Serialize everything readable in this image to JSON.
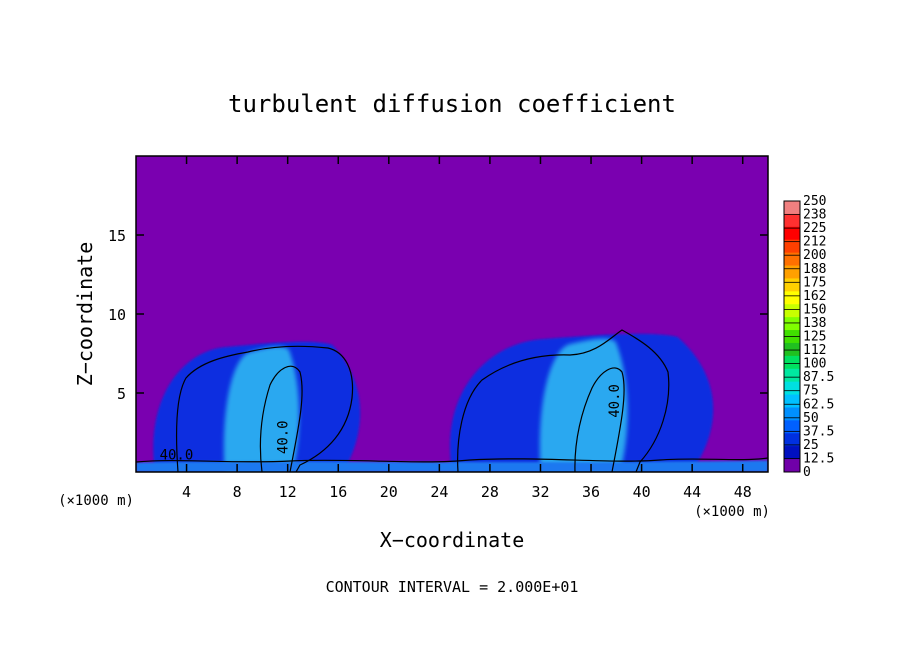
{
  "chart_data": {
    "type": "heatmap",
    "title": "turbulent diffusion coefficient",
    "xlabel": "X−coordinate",
    "ylabel": "Z−coordinate",
    "x_unit_left": "(×1000 m)",
    "x_unit_right": "(×1000 m)",
    "footer": "CONTOUR INTERVAL = 2.000E+01",
    "xlim": [
      0,
      50
    ],
    "ylim": [
      0,
      20
    ],
    "xticks": [
      {
        "value": 4,
        "label": "4"
      },
      {
        "value": 8,
        "label": "8"
      },
      {
        "value": 12,
        "label": "12"
      },
      {
        "value": 16,
        "label": "16"
      },
      {
        "value": 20,
        "label": "20"
      },
      {
        "value": 24,
        "label": "24"
      },
      {
        "value": 28,
        "label": "28"
      },
      {
        "value": 32,
        "label": "32"
      },
      {
        "value": 36,
        "label": "36"
      },
      {
        "value": 40,
        "label": "40"
      },
      {
        "value": 44,
        "label": "44"
      },
      {
        "value": 48,
        "label": "48"
      }
    ],
    "yticks": [
      {
        "value": 5,
        "label": "5"
      },
      {
        "value": 10,
        "label": "10"
      },
      {
        "value": 15,
        "label": "15"
      }
    ],
    "colorbar": {
      "min": 0,
      "max": 250,
      "labels": [
        "250",
        "238",
        "225",
        "212",
        "200",
        "188",
        "175",
        "162",
        "150",
        "138",
        "125",
        "112",
        "100",
        "87.5",
        "75",
        "62.5",
        "50",
        "37.5",
        "25",
        "12.5",
        "0"
      ],
      "colors": [
        "#f08080",
        "#ff3030",
        "#ff0000",
        "#ff4000",
        "#ff7000",
        "#ffa000",
        "#ffd000",
        "#ffff00",
        "#c8ff00",
        "#80ff00",
        "#40e000",
        "#20c020",
        "#00e060",
        "#00e8a0",
        "#00e0e0",
        "#00c0ff",
        "#0090ff",
        "#0060ff",
        "#0030e0",
        "#0010c0",
        "#7000a8"
      ]
    },
    "background_value_color": "#7a00b0",
    "regions": [
      {
        "name": "left-cloud",
        "x": [
          1.5,
          18
        ],
        "z": [
          0,
          8.3
        ],
        "level": "25-37.5",
        "color": "#0a2ee0"
      },
      {
        "name": "right-cloud",
        "x": [
          25,
          46
        ],
        "z": [
          0,
          8.8
        ],
        "level": "25-37.5",
        "color": "#0a2ee0"
      },
      {
        "name": "left-core",
        "x": [
          7,
          13
        ],
        "z": [
          0,
          8
        ],
        "level": "50-62.5",
        "color": "#2aa8f0"
      },
      {
        "name": "right-core",
        "x": [
          32,
          39
        ],
        "z": [
          0,
          8.5
        ],
        "level": "50-62.5",
        "color": "#2aa8f0"
      },
      {
        "name": "surface-layer",
        "x": [
          0,
          50
        ],
        "z": [
          0,
          0.6
        ],
        "level": "37.5-50",
        "color": "#1e78f0"
      }
    ],
    "contour_labels": [
      {
        "x": 3.2,
        "z": 0.8,
        "text": "40.0"
      },
      {
        "x": 12.0,
        "z": 2.2,
        "text": "40.0"
      },
      {
        "x": 38.2,
        "z": 4.5,
        "text": "40.0"
      }
    ]
  }
}
